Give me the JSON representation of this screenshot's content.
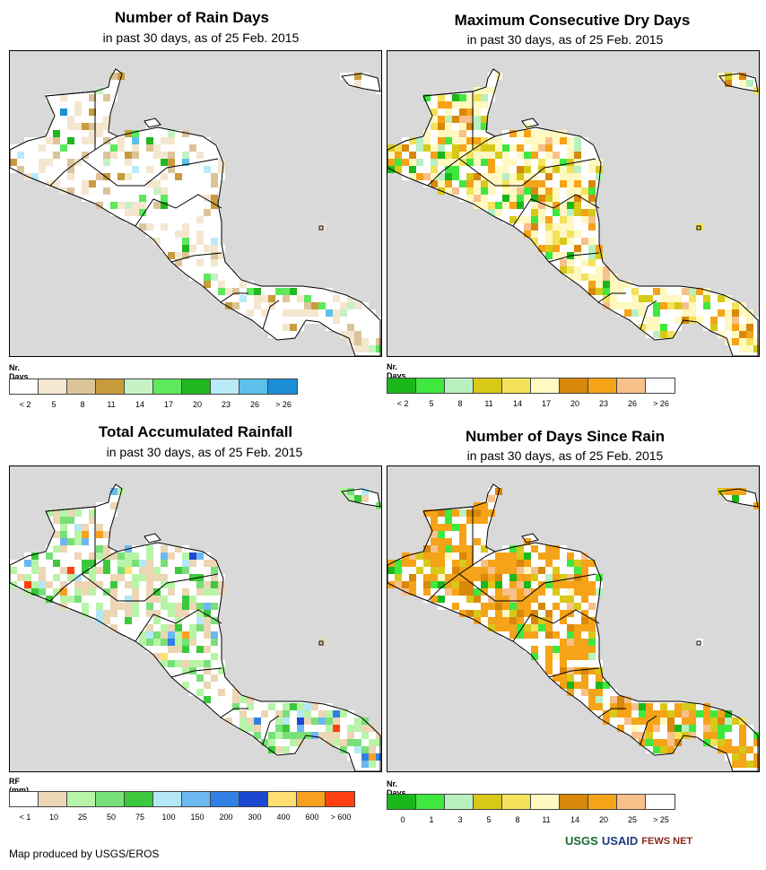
{
  "panels": [
    {
      "title": "Number of Rain Days",
      "subtitle": "in past 30 days, as of 25 Feb. 2015",
      "legend_title": "Nr. Days",
      "legend_colors": [
        "#ffffff",
        "#f5e6cf",
        "#dcc49a",
        "#c89b3c",
        "#c4f2c4",
        "#5ee85e",
        "#20b820",
        "#b8eaf8",
        "#5cc0ea",
        "#1a8ed6"
      ],
      "legend_ticks": [
        "< 2",
        "5",
        "8",
        "11",
        "14",
        "17",
        "20",
        "23",
        "26",
        "> 26"
      ],
      "palette": [
        "#ffffff",
        "#f5e6cf",
        "#dcc49a",
        "#c89b3c",
        "#c4f2c4",
        "#5ee85e",
        "#20b820",
        "#b8eaf8",
        "#5cc0ea",
        "#1a8ed6"
      ],
      "weights": [
        62,
        20,
        8,
        3,
        2,
        2,
        1,
        1,
        1,
        0.5
      ]
    },
    {
      "title": "Maximum Consecutive Dry Days",
      "subtitle": "in past 30 days, as of 25 Feb. 2015",
      "legend_title": "Nr. Days",
      "legend_colors": [
        "#1ab81a",
        "#3fe83f",
        "#b8f0c0",
        "#d8c818",
        "#f3e25a",
        "#fff8c0",
        "#d8880a",
        "#f5a318",
        "#f8c08a",
        "#ffffff"
      ],
      "legend_ticks": [
        "< 2",
        "5",
        "8",
        "11",
        "14",
        "17",
        "20",
        "23",
        "26",
        "> 26"
      ],
      "palette": [
        "#1ab81a",
        "#3fe83f",
        "#b8f0c0",
        "#d8c818",
        "#f3e25a",
        "#fff8c0",
        "#d8880a",
        "#f5a318",
        "#f8c08a",
        "#ffffff"
      ],
      "weights": [
        3,
        3,
        4,
        5,
        8,
        30,
        6,
        10,
        4,
        27
      ]
    },
    {
      "title": "Total Accumulated Rainfall",
      "subtitle": "in past 30 days, as of 25 Feb. 2015",
      "legend_title": "RF (mm)",
      "legend_colors": [
        "#ffffff",
        "#ecd6b4",
        "#b8f4a8",
        "#78e078",
        "#3cc83c",
        "#b4e8f8",
        "#6cb8f0",
        "#3080e8",
        "#1c48d0",
        "#ffe070",
        "#f8a020",
        "#ff4010"
      ],
      "legend_ticks": [
        "< 1",
        "10",
        "25",
        "50",
        "75",
        "100",
        "150",
        "200",
        "300",
        "400",
        "600",
        "> 600"
      ],
      "palette": [
        "#ffffff",
        "#ecd6b4",
        "#b8f4a8",
        "#78e078",
        "#3cc83c",
        "#b4e8f8",
        "#6cb8f0",
        "#3080e8",
        "#1c48d0",
        "#ffe070",
        "#f8a020",
        "#ff4010"
      ],
      "weights": [
        45,
        20,
        15,
        7,
        4,
        2,
        2,
        2,
        1,
        1,
        1,
        0.3
      ]
    },
    {
      "title": "Number of Days Since Rain",
      "subtitle": "in past 30 days, as of 25 Feb. 2015",
      "legend_title": "Nr. Days",
      "legend_colors": [
        "#1ab81a",
        "#3fe83f",
        "#b8f0c0",
        "#d8c818",
        "#f3e25a",
        "#fff8c0",
        "#d8880a",
        "#f5a318",
        "#f8c08a",
        "#ffffff"
      ],
      "legend_ticks": [
        "0",
        "1",
        "3",
        "5",
        "8",
        "11",
        "14",
        "20",
        "25",
        "> 25"
      ],
      "palette": [
        "#1ab81a",
        "#3fe83f",
        "#b8f0c0",
        "#d8c818",
        "#f3e25a",
        "#fff8c0",
        "#d8880a",
        "#f5a318",
        "#f8c08a",
        "#ffffff"
      ],
      "weights": [
        3,
        5,
        2,
        8,
        1,
        1,
        6,
        38,
        5,
        31
      ]
    }
  ],
  "footer": "Map produced by USGS/EROS",
  "logos": [
    "USGS",
    "USAID",
    "FEWS NET"
  ],
  "colors": {
    "ocean": "#d9d9d9",
    "border": "#000000"
  }
}
